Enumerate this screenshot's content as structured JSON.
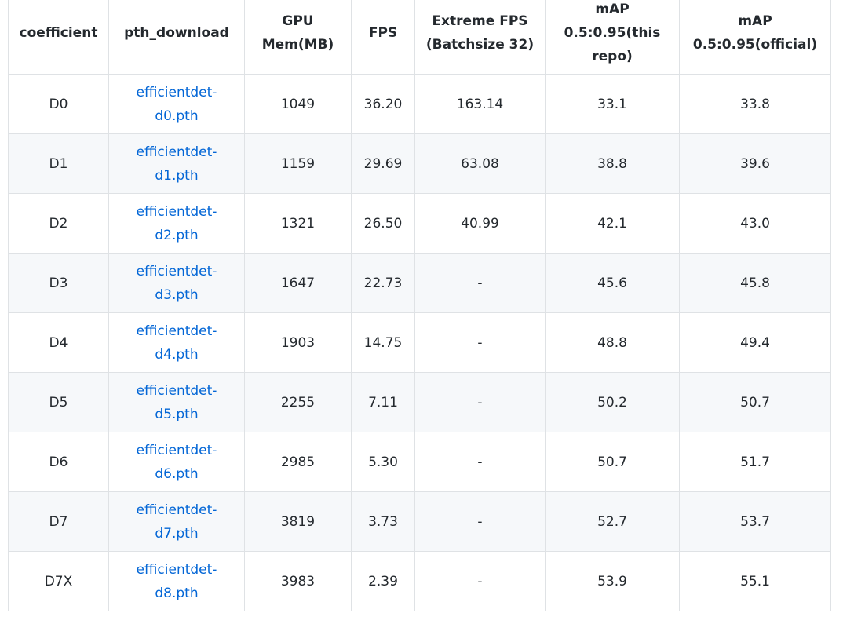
{
  "table": {
    "headers": [
      "coefficient",
      "pth_download",
      "GPU Mem(MB)",
      "FPS",
      "Extreme FPS (Batchsize 32)",
      "mAP 0.5:0.95(this repo)",
      "mAP 0.5:0.95(official)"
    ],
    "rows": [
      [
        "D0",
        "efficientdet-d0.pth",
        "1049",
        "36.20",
        "163.14",
        "33.1",
        "33.8"
      ],
      [
        "D1",
        "efficientdet-d1.pth",
        "1159",
        "29.69",
        "63.08",
        "38.8",
        "39.6"
      ],
      [
        "D2",
        "efficientdet-d2.pth",
        "1321",
        "26.50",
        "40.99",
        "42.1",
        "43.0"
      ],
      [
        "D3",
        "efficientdet-d3.pth",
        "1647",
        "22.73",
        "-",
        "45.6",
        "45.8"
      ],
      [
        "D4",
        "efficientdet-d4.pth",
        "1903",
        "14.75",
        "-",
        "48.8",
        "49.4"
      ],
      [
        "D5",
        "efficientdet-d5.pth",
        "2255",
        "7.11",
        "-",
        "50.2",
        "50.7"
      ],
      [
        "D6",
        "efficientdet-d6.pth",
        "2985",
        "5.30",
        "-",
        "50.7",
        "51.7"
      ],
      [
        "D7",
        "efficientdet-d7.pth",
        "3819",
        "3.73",
        "-",
        "52.7",
        "53.7"
      ],
      [
        "D7X",
        "efficientdet-d8.pth",
        "3983",
        "2.39",
        "-",
        "53.9",
        "55.1"
      ]
    ]
  },
  "colors": {
    "link": "#0366d6",
    "border": "#dfe2e5",
    "stripe": "#f6f8fa",
    "text": "#24292e"
  }
}
